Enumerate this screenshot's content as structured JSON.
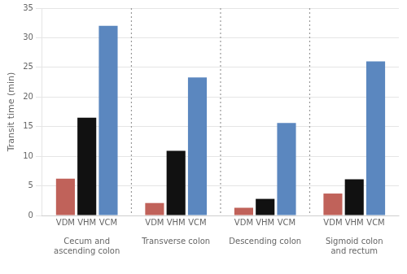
{
  "chart_data": {
    "type": "bar",
    "categories": [
      "Cecum and ascending colon",
      "Transverse colon",
      "Descending colon",
      "Sigmoid colon and rectum"
    ],
    "series": [
      {
        "name": "VDM",
        "color": "#c0625a",
        "values": [
          6.2,
          2.1,
          1.3,
          3.7
        ]
      },
      {
        "name": "VHM",
        "color": "#111111",
        "values": [
          16.5,
          10.9,
          2.8,
          6.1
        ]
      },
      {
        "name": "VCM",
        "color": "#5b87bf",
        "values": [
          32.0,
          23.3,
          15.6,
          26.0
        ]
      }
    ],
    "ylabel": "Transit time (min)",
    "ylim": [
      0,
      35
    ],
    "yticks": [
      0,
      5,
      10,
      15,
      20,
      25,
      30,
      35
    ],
    "grid": true
  }
}
